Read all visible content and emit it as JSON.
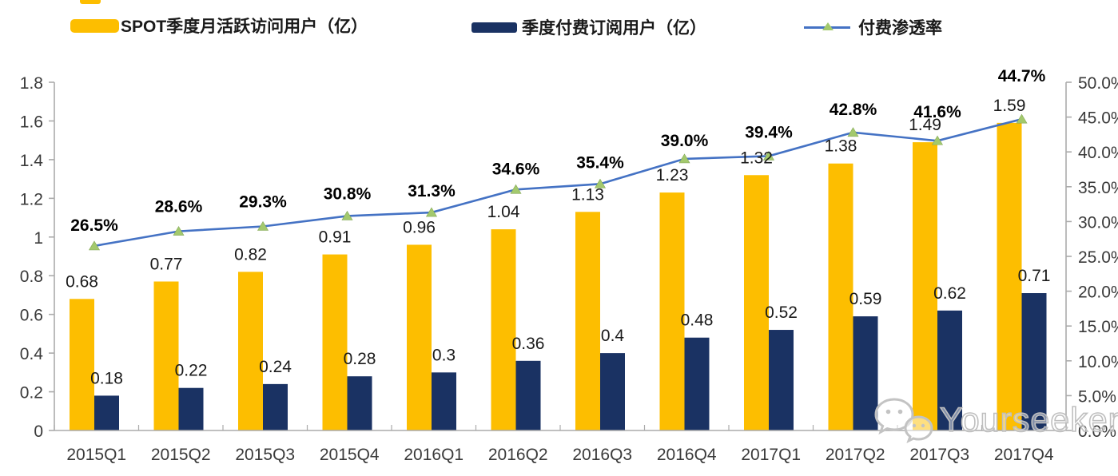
{
  "legend": [
    {
      "label": "SPOT季度月活跃访问用户（亿）",
      "type": "bar",
      "color": "#FDBE00"
    },
    {
      "label": "季度付费订阅用户（亿）",
      "type": "bar",
      "color": "#1A3263"
    },
    {
      "label": "付费渗透率",
      "type": "line",
      "color": "#4472C4",
      "marker_color": "#A3C96D"
    }
  ],
  "watermark": {
    "icon": "wechat-icon",
    "text": "Yourseeker"
  },
  "colors": {
    "bar_mau": "#FDBE00",
    "bar_subs": "#1A3263",
    "line": "#4472C4",
    "marker": "#A3C96D",
    "axis": "#ABABAB",
    "tick_text": "#3a3a3a",
    "label_text": "#1a1a1a"
  },
  "chart_data": {
    "type": "bar+line",
    "title": "",
    "categories": [
      "2015Q1",
      "2015Q2",
      "2015Q3",
      "2015Q4",
      "2016Q1",
      "2016Q2",
      "2016Q3",
      "2016Q4",
      "2017Q1",
      "2017Q2",
      "2017Q3",
      "2017Q4"
    ],
    "series": [
      {
        "name": "SPOT季度月活跃访问用户（亿）",
        "type": "bar",
        "axis": "left",
        "color": "#FDBE00",
        "values": [
          0.68,
          0.77,
          0.82,
          0.91,
          0.96,
          1.04,
          1.13,
          1.23,
          1.32,
          1.38,
          1.49,
          1.59
        ],
        "labels": [
          "0.68",
          "0.77",
          "0.82",
          "0.91",
          "0.96",
          "1.04",
          "1.13",
          "1.23",
          "1.32",
          "1.38",
          "1.49",
          "1.59"
        ]
      },
      {
        "name": "季度付费订阅用户（亿）",
        "type": "bar",
        "axis": "left",
        "color": "#1A3263",
        "values": [
          0.18,
          0.22,
          0.24,
          0.28,
          0.3,
          0.36,
          0.4,
          0.48,
          0.52,
          0.59,
          0.62,
          0.71
        ],
        "labels": [
          "0.18",
          "0.22",
          "0.24",
          "0.28",
          "0.3",
          "0.36",
          "0.4",
          "0.48",
          "0.52",
          "0.59",
          "0.62",
          "0.71"
        ]
      },
      {
        "name": "付费渗透率",
        "type": "line",
        "axis": "right",
        "color": "#4472C4",
        "marker": "triangle",
        "marker_color": "#A3C96D",
        "values": [
          26.5,
          28.6,
          29.3,
          30.8,
          31.3,
          34.6,
          35.4,
          39.0,
          39.4,
          42.8,
          41.6,
          44.7
        ],
        "labels": [
          "26.5%",
          "28.6%",
          "29.3%",
          "30.8%",
          "31.3%",
          "34.6%",
          "35.4%",
          "39.0%",
          "39.4%",
          "42.8%",
          "41.6%",
          "44.7%"
        ]
      }
    ],
    "left_axis": {
      "min": 0,
      "max": 1.8,
      "ticks": [
        "0",
        "0.2",
        "0.4",
        "0.6",
        "0.8",
        "1",
        "1.2",
        "1.4",
        "1.6",
        "1.8"
      ]
    },
    "right_axis": {
      "min": 0,
      "max": 50,
      "ticks": [
        "0.0%",
        "5.0%",
        "10.0%",
        "15.0%",
        "20.0%",
        "25.0%",
        "30.0%",
        "35.0%",
        "40.0%",
        "45.0%",
        "50.0%"
      ]
    },
    "grid": false,
    "legend_position": "top"
  }
}
